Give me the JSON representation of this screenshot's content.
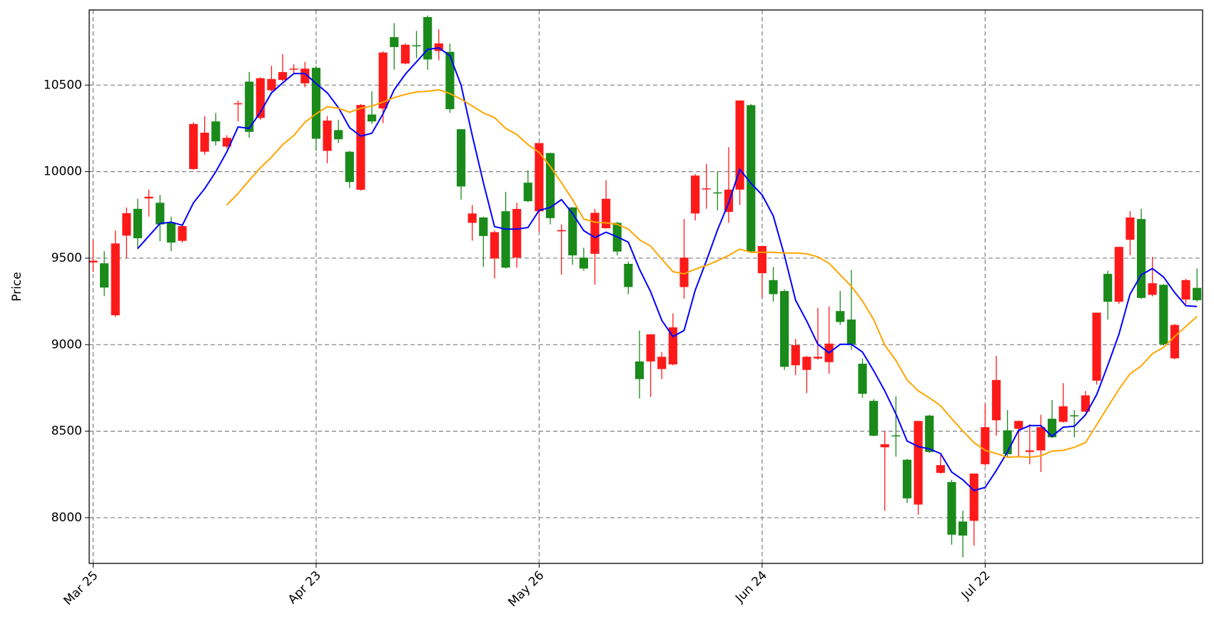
{
  "chart_data": {
    "type": "candlestick",
    "y_label": "Price",
    "categories": [
      "Mar 25",
      null,
      null,
      null,
      null,
      null,
      null,
      null,
      null,
      null,
      null,
      null,
      null,
      null,
      null,
      null,
      null,
      null,
      null,
      null,
      "Apr 23",
      null,
      null,
      null,
      null,
      null,
      null,
      null,
      null,
      null,
      null,
      null,
      null,
      null,
      null,
      null,
      null,
      null,
      null,
      null,
      "May 26",
      null,
      null,
      null,
      null,
      null,
      null,
      null,
      null,
      null,
      null,
      null,
      null,
      null,
      null,
      null,
      null,
      null,
      null,
      null,
      "Jun 24",
      null,
      null,
      null,
      null,
      null,
      null,
      null,
      null,
      null,
      null,
      null,
      null,
      null,
      null,
      null,
      null,
      null,
      null,
      null,
      "Jul 22",
      null,
      null,
      null,
      null,
      null,
      null,
      null,
      null,
      null,
      null,
      null,
      null,
      null,
      null,
      null,
      null,
      null,
      null,
      null
    ],
    "open": [
      9475,
      9470,
      9170,
      9630,
      9785,
      9845,
      9820,
      9705,
      9600,
      10015,
      10115,
      10290,
      10145,
      10390,
      10520,
      10310,
      10470,
      10530,
      10590,
      10510,
      10600,
      10120,
      10240,
      10115,
      9895,
      10330,
      10365,
      10777,
      10625,
      10730,
      10893,
      10697,
      10692,
      10245,
      9704,
      9735,
      9498,
      9771,
      9503,
      9936,
      9771,
      10107,
      9655,
      9793,
      9503,
      9525,
      9673,
      9704,
      9467,
      8903,
      8903,
      8859,
      8886,
      9333,
      9758,
      9898,
      9880,
      9767,
      9896,
      10384,
      9413,
      9373,
      9310,
      8881,
      8854,
      8920,
      8899,
      9194,
      9145,
      8890,
      8675,
      8407,
      8476,
      8335,
      8076,
      8590,
      8259,
      8206,
      7978,
      7982,
      8309,
      8563,
      8505,
      8514,
      8380,
      8389,
      8572,
      8554,
      8592,
      8613,
      8792,
      9409,
      9248,
      9606,
      9726,
      9288,
      9346,
      8921,
      9261,
      9328
    ],
    "high": [
      9606,
      9540,
      9660,
      9793,
      9843,
      9896,
      9865,
      9740,
      9700,
      10285,
      10320,
      10339,
      10210,
      10410,
      10576,
      10545,
      10612,
      10679,
      10620,
      10634,
      10612,
      10321,
      10299,
      10120,
      10390,
      10464,
      10695,
      10858,
      10740,
      10813,
      10902,
      10822,
      10740,
      10245,
      9807,
      9740,
      9660,
      9883,
      9820,
      10008,
      10165,
      10110,
      9695,
      9795,
      9561,
      9785,
      9950,
      9710,
      9480,
      9082,
      9060,
      8957,
      9181,
      9726,
      9985,
      10044,
      9999,
      10142,
      10411,
      10390,
      9570,
      9449,
      9320,
      9033,
      8935,
      9212,
      9221,
      9310,
      9431,
      8921,
      8685,
      8501,
      8702,
      8340,
      8559,
      8595,
      8362,
      8219,
      8040,
      8255,
      8657,
      8935,
      8622,
      8562,
      8541,
      8595,
      8680,
      8778,
      8622,
      8733,
      9185,
      9427,
      9565,
      9771,
      9785,
      9507,
      9350,
      9120,
      9380,
      9440
    ],
    "low": [
      9420,
      9280,
      9160,
      9500,
      9552,
      9740,
      9597,
      9540,
      9590,
      10010,
      10098,
      10151,
      10135,
      10290,
      10196,
      10300,
      10464,
      10522,
      10570,
      10487,
      10120,
      10048,
      10165,
      9905,
      9890,
      10276,
      10280,
      10589,
      10620,
      10656,
      10589,
      10643,
      10340,
      9838,
      9601,
      9449,
      9382,
      9440,
      9445,
      9825,
      9650,
      9695,
      9404,
      9462,
      9427,
      9346,
      9670,
      9516,
      9292,
      8689,
      8698,
      8801,
      8880,
      9266,
      9718,
      9785,
      9776,
      9704,
      9807,
      9530,
      9270,
      9248,
      8854,
      8823,
      8720,
      8912,
      8832,
      9114,
      8970,
      8693,
      8470,
      8040,
      8353,
      8085,
      8018,
      8375,
      8255,
      7844,
      7772,
      7839,
      8300,
      8474,
      8353,
      8353,
      8309,
      8264,
      8460,
      8550,
      8465,
      8610,
      8769,
      9145,
      9235,
      9516,
      9265,
      9279,
      8995,
      8915,
      9234,
      9248
    ],
    "close": [
      9485,
      9330,
      9585,
      9760,
      9615,
      9855,
      9695,
      9590,
      9685,
      10275,
      10225,
      10175,
      10195,
      10395,
      10230,
      10540,
      10535,
      10575,
      10595,
      10595,
      10190,
      10295,
      10187,
      9940,
      10385,
      10290,
      10688,
      10720,
      10733,
      10725,
      10648,
      10741,
      10361,
      9914,
      9758,
      9628,
      9650,
      9445,
      9784,
      9829,
      10165,
      9731,
      9662,
      9516,
      9440,
      9762,
      9843,
      9538,
      9333,
      8801,
      9060,
      8930,
      9100,
      9503,
      9977,
      9903,
      9878,
      9896,
      10411,
      9538,
      9570,
      9292,
      8872,
      8997,
      8930,
      8930,
      9006,
      9131,
      9002,
      8716,
      8474,
      8425,
      8472,
      8112,
      8559,
      8380,
      8304,
      7902,
      7897,
      8255,
      8523,
      8796,
      8367,
      8559,
      8389,
      8523,
      8465,
      8644,
      8588,
      8707,
      9185,
      9248,
      9565,
      9735,
      9270,
      9355,
      9002,
      9114,
      9373,
      9257
    ],
    "up_color": "#ff1a1a",
    "down_color": "#1a8a1a",
    "lines": [
      {
        "color": "#0000ff",
        "values": [
          null,
          null,
          null,
          null,
          9556,
          9628,
          9700,
          9708,
          9690,
          9820,
          9901,
          9999,
          10115,
          10258,
          10250,
          10343,
          10455,
          10513,
          10567,
          10567,
          10509,
          10455,
          10370,
          10254,
          10205,
          10222,
          10334,
          10473,
          10563,
          10634,
          10706,
          10715,
          10670,
          10500,
          10209,
          9936,
          9682,
          9668,
          9668,
          9677,
          9776,
          9793,
          9838,
          9758,
          9659,
          9619,
          9650,
          9623,
          9592,
          9436,
          9306,
          9140,
          9047,
          9082,
          9315,
          9485,
          9664,
          9820,
          10013,
          9932,
          9865,
          9744,
          9516,
          9257,
          9136,
          9002,
          8953,
          9002,
          9002,
          8957,
          8850,
          8733,
          8599,
          8443,
          8411,
          8398,
          8371,
          8264,
          8219,
          8157,
          8175,
          8273,
          8380,
          8505,
          8532,
          8532,
          8470,
          8523,
          8528,
          8595,
          8711,
          8881,
          9060,
          9292,
          9404,
          9440,
          9391,
          9301,
          9225,
          9221
        ]
      },
      {
        "color": "#ffa500",
        "values": [
          null,
          null,
          null,
          null,
          null,
          null,
          null,
          null,
          null,
          null,
          null,
          null,
          9807,
          9874,
          9950,
          10021,
          10084,
          10156,
          10209,
          10285,
          10334,
          10375,
          10366,
          10343,
          10366,
          10379,
          10402,
          10428,
          10446,
          10460,
          10464,
          10473,
          10451,
          10419,
          10379,
          10339,
          10312,
          10250,
          10214,
          10156,
          10111,
          10030,
          9936,
          9838,
          9726,
          9708,
          9704,
          9695,
          9668,
          9606,
          9570,
          9494,
          9422,
          9409,
          9436,
          9458,
          9485,
          9516,
          9552,
          9534,
          9534,
          9534,
          9530,
          9530,
          9525,
          9507,
          9471,
          9404,
          9337,
          9252,
          9145,
          8997,
          8908,
          8796,
          8733,
          8693,
          8648,
          8572,
          8501,
          8434,
          8389,
          8371,
          8349,
          8353,
          8349,
          8358,
          8385,
          8389,
          8407,
          8434,
          8537,
          8640,
          8742,
          8832,
          8877,
          8948,
          8984,
          9047,
          9105,
          9163
        ]
      }
    ],
    "xlim": [
      -0.35,
      99.5
    ],
    "ylim": [
      7736,
      10934
    ],
    "yticks": [
      8000,
      8500,
      9000,
      9500,
      10000,
      10500
    ],
    "grid": true
  }
}
